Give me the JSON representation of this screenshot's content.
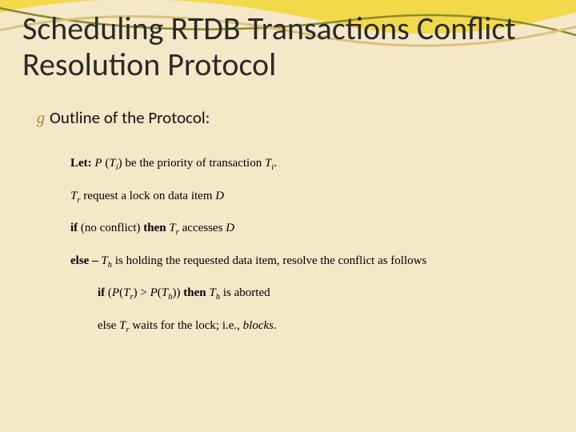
{
  "slide": {
    "background_color": "#f5e8c8",
    "title": "Scheduling RTDB Transactions Conflict Resolution Protocol",
    "title_fontsize": 40,
    "title_color": "#2a2a2a",
    "subtitle_bullet_glyph": "g",
    "subtitle": "Outline of the Protocol:",
    "subtitle_fontsize": 21,
    "swoosh": {
      "yellow": "#f2d94a",
      "olive": "#8a8a2d",
      "tan": "#d9c27a"
    },
    "protocol": {
      "font_family": "Times New Roman",
      "font_size": 15,
      "lines": [
        {
          "kw": "Let:",
          "text_html": "<em class='var'>P</em> (<em class='var'>T<span class='sub'>i</span></em>) be the priority of transaction <em class='var'>T<span class='sub'>i</span></em>."
        },
        {
          "kw": "",
          "text_html": "<em class='var'>T<span class='sub'>r</span></em> request a lock on data item <em class='var'>D</em>"
        },
        {
          "kw": "if",
          "text_html": " (no conflict) <b>then</b> <em class='var'>T<span class='sub'>r</span></em> accesses <em class='var'>D</em>"
        },
        {
          "kw": "else –",
          "text_html": "<em class='var'>T<span class='sub'>h</span></em> is holding the requested data item, resolve the conflict as follows"
        },
        {
          "kw": "if",
          "indent": true,
          "text_html": " (<em class='var'>P</em>(<em class='var'>T<span class='sub'>r</span></em>) &gt; <em class='var'>P</em>(<em class='var'>T<span class='sub'>h</span></em>)) <b>then</b> <em class='var'>T<span class='sub'>h</span></em> is aborted"
        },
        {
          "kw": "",
          "indent": true,
          "text_html": "else <em class='var'>T<span class='sub'>r</span></em> waits for the lock; i.e., <em class='var'>blocks</em>."
        }
      ]
    }
  }
}
